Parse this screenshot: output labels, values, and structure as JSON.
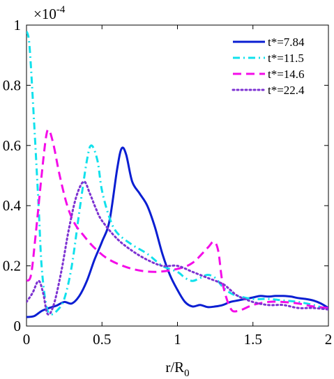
{
  "chart_data": {
    "type": "line",
    "xlabel": {
      "base": "r/R",
      "sub": "0"
    },
    "xlim": [
      0,
      2
    ],
    "ylim": [
      0,
      1
    ],
    "y_multiplier": {
      "base": "10",
      "exp": "-4",
      "prefix": "×"
    },
    "x_ticks": [
      {
        "value": 0,
        "label": "0"
      },
      {
        "value": 0.5,
        "label": "0.5"
      },
      {
        "value": 1,
        "label": "1"
      },
      {
        "value": 1.5,
        "label": "1.5"
      },
      {
        "value": 2,
        "label": "2"
      }
    ],
    "y_ticks": [
      {
        "value": 0,
        "label": "0"
      },
      {
        "value": 0.2,
        "label": "0.2"
      },
      {
        "value": 0.4,
        "label": "0.4"
      },
      {
        "value": 0.6,
        "label": "0.6"
      },
      {
        "value": 0.8,
        "label": "0.8"
      },
      {
        "value": 1,
        "label": "1"
      }
    ],
    "legend_position": "top-right",
    "grid": false,
    "series": [
      {
        "name": "t*=7.84",
        "color": "#0a1ed2",
        "dash": "solid",
        "x": [
          0,
          0.05,
          0.1,
          0.15,
          0.2,
          0.25,
          0.3,
          0.35,
          0.4,
          0.45,
          0.5,
          0.55,
          0.6,
          0.63,
          0.66,
          0.7,
          0.75,
          0.8,
          0.85,
          0.9,
          0.95,
          1.0,
          1.05,
          1.1,
          1.15,
          1.2,
          1.25,
          1.3,
          1.35,
          1.4,
          1.45,
          1.5,
          1.55,
          1.6,
          1.65,
          1.7,
          1.75,
          1.8,
          1.85,
          1.9,
          1.95,
          2.0
        ],
        "y": [
          0.03,
          0.033,
          0.05,
          0.06,
          0.068,
          0.08,
          0.075,
          0.1,
          0.15,
          0.22,
          0.28,
          0.35,
          0.52,
          0.59,
          0.57,
          0.48,
          0.44,
          0.4,
          0.33,
          0.24,
          0.17,
          0.12,
          0.08,
          0.065,
          0.07,
          0.063,
          0.065,
          0.07,
          0.08,
          0.085,
          0.09,
          0.095,
          0.1,
          0.098,
          0.1,
          0.1,
          0.098,
          0.093,
          0.09,
          0.085,
          0.075,
          0.06
        ]
      },
      {
        "name": "t*=11.5",
        "color": "#11e1ec",
        "dash": "dashdot",
        "x": [
          0,
          0.02,
          0.05,
          0.08,
          0.1,
          0.13,
          0.16,
          0.2,
          0.25,
          0.3,
          0.35,
          0.4,
          0.43,
          0.47,
          0.5,
          0.55,
          0.6,
          0.7,
          0.8,
          0.9,
          1.0,
          1.05,
          1.1,
          1.15,
          1.2,
          1.25,
          1.3,
          1.35,
          1.4,
          1.5,
          1.6,
          1.7,
          1.8,
          1.9,
          2.0
        ],
        "y": [
          0.98,
          0.93,
          0.68,
          0.4,
          0.2,
          0.07,
          0.04,
          0.05,
          0.09,
          0.2,
          0.38,
          0.55,
          0.6,
          0.55,
          0.45,
          0.36,
          0.31,
          0.27,
          0.24,
          0.2,
          0.18,
          0.16,
          0.15,
          0.16,
          0.17,
          0.16,
          0.13,
          0.11,
          0.1,
          0.09,
          0.09,
          0.085,
          0.08,
          0.07,
          0.055
        ]
      },
      {
        "name": "t*=14.6",
        "color": "#f40ce8",
        "dash": "dashed",
        "x": [
          0,
          0.03,
          0.06,
          0.1,
          0.13,
          0.15,
          0.18,
          0.22,
          0.27,
          0.32,
          0.38,
          0.45,
          0.55,
          0.7,
          0.85,
          1.0,
          1.1,
          1.2,
          1.24,
          1.27,
          1.3,
          1.35,
          1.4,
          1.5,
          1.6,
          1.7,
          1.8,
          1.9,
          2.0
        ],
        "y": [
          0.15,
          0.17,
          0.3,
          0.5,
          0.63,
          0.65,
          0.6,
          0.5,
          0.4,
          0.34,
          0.3,
          0.26,
          0.22,
          0.19,
          0.18,
          0.19,
          0.21,
          0.26,
          0.28,
          0.25,
          0.14,
          0.06,
          0.05,
          0.07,
          0.08,
          0.08,
          0.075,
          0.065,
          0.06
        ]
      },
      {
        "name": "t*=22.4",
        "color": "#7d32d2",
        "dash": "dotted",
        "x": [
          0,
          0.04,
          0.08,
          0.11,
          0.14,
          0.18,
          0.23,
          0.28,
          0.33,
          0.38,
          0.42,
          0.46,
          0.5,
          0.6,
          0.7,
          0.8,
          0.9,
          1.0,
          1.1,
          1.2,
          1.3,
          1.35,
          1.4,
          1.5,
          1.6,
          1.7,
          1.8,
          1.9,
          2.0
        ],
        "y": [
          0.08,
          0.11,
          0.15,
          0.11,
          0.04,
          0.07,
          0.18,
          0.32,
          0.43,
          0.48,
          0.44,
          0.39,
          0.35,
          0.29,
          0.25,
          0.22,
          0.2,
          0.2,
          0.18,
          0.16,
          0.14,
          0.12,
          0.1,
          0.08,
          0.07,
          0.07,
          0.06,
          0.06,
          0.055
        ]
      }
    ]
  }
}
